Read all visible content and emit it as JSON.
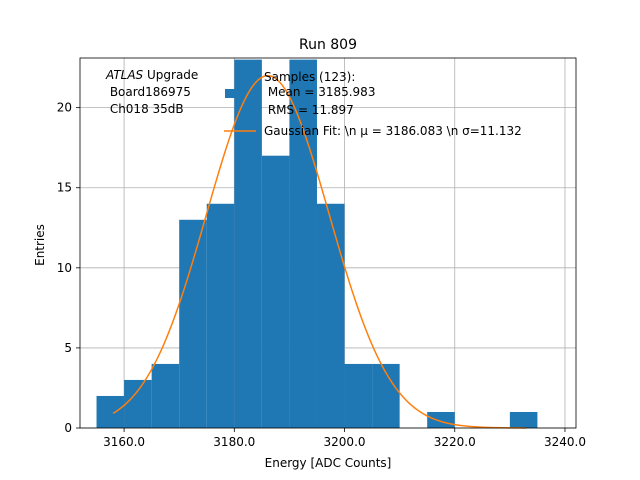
{
  "chart_data": {
    "type": "bar",
    "title": "Run 809",
    "xlabel": "Energy [ADC Counts]",
    "ylabel": "Entries",
    "xlim": [
      3152,
      3242
    ],
    "ylim": [
      0,
      23.1
    ],
    "xticks": [
      3160,
      3180,
      3200,
      3220,
      3240
    ],
    "xtick_labels": [
      "3160.0",
      "3180.0",
      "3200.0",
      "3220.0",
      "3240.0"
    ],
    "yticks": [
      0,
      5,
      10,
      15,
      20
    ],
    "ytick_labels": [
      "0",
      "5",
      "10",
      "15",
      "20"
    ],
    "grid": true,
    "bin_width": 5,
    "bins": [
      {
        "x0": 3155,
        "count": 2
      },
      {
        "x0": 3160,
        "count": 3
      },
      {
        "x0": 3165,
        "count": 4
      },
      {
        "x0": 3170,
        "count": 13
      },
      {
        "x0": 3175,
        "count": 14
      },
      {
        "x0": 3180,
        "count": 23
      },
      {
        "x0": 3185,
        "count": 17
      },
      {
        "x0": 3190,
        "count": 23
      },
      {
        "x0": 3195,
        "count": 14
      },
      {
        "x0": 3200,
        "count": 4
      },
      {
        "x0": 3205,
        "count": 4
      },
      {
        "x0": 3210,
        "count": 0
      },
      {
        "x0": 3215,
        "count": 1
      },
      {
        "x0": 3220,
        "count": 0
      },
      {
        "x0": 3225,
        "count": 0
      },
      {
        "x0": 3230,
        "count": 1
      }
    ],
    "fit": {
      "mu": 3186.083,
      "sigma": 11.132,
      "amplitude": 22.0,
      "x_range": [
        3158,
        3233
      ]
    },
    "colors": {
      "hist": "#1f77b4",
      "fit": "#ff7f0e",
      "grid": "#b0b0b0"
    },
    "annotation": {
      "line1_italic": "ATLAS",
      "line1_rest": " Upgrade",
      "line2": " Board186975",
      "line3": " Ch018 35dB"
    },
    "legend": {
      "placement": "top-right",
      "hist_label_lines": [
        "Samples (123):",
        " Mean = 3185.983",
        " RMS = 11.897"
      ],
      "fit_label": "Gaussian Fit: \\n μ = 3186.083 \\n σ=11.132"
    }
  }
}
